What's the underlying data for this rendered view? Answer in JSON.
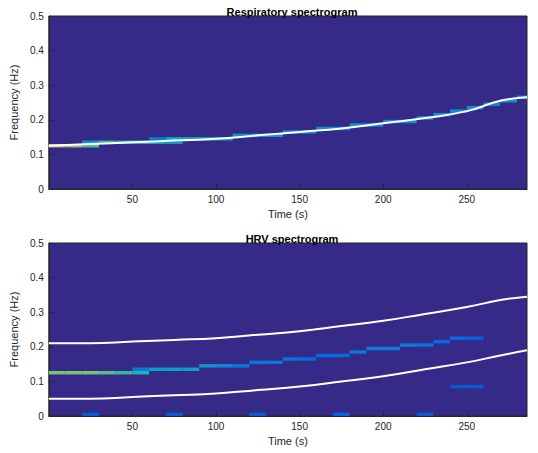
{
  "chart_data": [
    {
      "type": "heatmap",
      "title": "Respiratory spectrogram",
      "x_label": "Time (s)",
      "y_label": "Frequency (Hz)",
      "xlim": [
        0,
        286
      ],
      "xticks": [
        50,
        100,
        150,
        200,
        250
      ],
      "ylim": [
        0,
        0.5
      ],
      "yticks": [
        0,
        0.1,
        0.2,
        0.3,
        0.4,
        0.5
      ],
      "clim": [
        0,
        1
      ],
      "cell_size": [
        10,
        0.01
      ],
      "cells": [
        [
          5,
          0.125,
          0.7
        ],
        [
          15,
          0.125,
          0.65
        ],
        [
          25,
          0.125,
          0.55
        ],
        [
          25,
          0.135,
          0.3
        ],
        [
          35,
          0.135,
          0.5
        ],
        [
          45,
          0.135,
          0.45
        ],
        [
          55,
          0.135,
          0.45
        ],
        [
          65,
          0.135,
          0.4
        ],
        [
          65,
          0.145,
          0.2
        ],
        [
          75,
          0.135,
          0.3
        ],
        [
          75,
          0.145,
          0.4
        ],
        [
          85,
          0.145,
          0.4
        ],
        [
          95,
          0.145,
          0.4
        ],
        [
          105,
          0.145,
          0.35
        ],
        [
          115,
          0.155,
          0.3
        ],
        [
          125,
          0.155,
          0.3
        ],
        [
          135,
          0.155,
          0.3
        ],
        [
          145,
          0.165,
          0.28
        ],
        [
          155,
          0.165,
          0.28
        ],
        [
          165,
          0.175,
          0.28
        ],
        [
          175,
          0.175,
          0.28
        ],
        [
          185,
          0.185,
          0.28
        ],
        [
          195,
          0.185,
          0.28
        ],
        [
          205,
          0.195,
          0.28
        ],
        [
          215,
          0.195,
          0.28
        ],
        [
          225,
          0.205,
          0.28
        ],
        [
          235,
          0.215,
          0.28
        ],
        [
          245,
          0.225,
          0.28
        ],
        [
          255,
          0.235,
          0.28
        ],
        [
          265,
          0.245,
          0.28
        ],
        [
          275,
          0.255,
          0.28
        ],
        [
          285,
          0.265,
          0.28
        ]
      ],
      "series": [
        {
          "type": "line",
          "color": "#ffffff",
          "x": [
            0,
            25,
            50,
            75,
            100,
            125,
            150,
            175,
            200,
            225,
            250,
            270,
            286
          ],
          "values": [
            0.125,
            0.13,
            0.135,
            0.14,
            0.145,
            0.155,
            0.165,
            0.175,
            0.19,
            0.205,
            0.225,
            0.255,
            0.265
          ]
        }
      ]
    },
    {
      "type": "heatmap",
      "title": "HRV spectrogram",
      "x_label": "Time (s)",
      "y_label": "Frequency (Hz)",
      "xlim": [
        0,
        286
      ],
      "xticks": [
        50,
        100,
        150,
        200,
        250
      ],
      "ylim": [
        0,
        0.5
      ],
      "yticks": [
        0,
        0.1,
        0.2,
        0.3,
        0.4,
        0.5
      ],
      "clim": [
        0,
        1
      ],
      "cell_size": [
        10,
        0.01
      ],
      "cells": [
        [
          5,
          0.125,
          0.6
        ],
        [
          15,
          0.125,
          0.6
        ],
        [
          25,
          0.125,
          0.6
        ],
        [
          35,
          0.125,
          0.55
        ],
        [
          45,
          0.125,
          0.5
        ],
        [
          55,
          0.125,
          0.45
        ],
        [
          55,
          0.135,
          0.2
        ],
        [
          65,
          0.135,
          0.35
        ],
        [
          75,
          0.135,
          0.35
        ],
        [
          85,
          0.135,
          0.35
        ],
        [
          95,
          0.145,
          0.3
        ],
        [
          105,
          0.145,
          0.25
        ],
        [
          115,
          0.145,
          0.2
        ],
        [
          125,
          0.155,
          0.2
        ],
        [
          135,
          0.155,
          0.2
        ],
        [
          145,
          0.165,
          0.18
        ],
        [
          155,
          0.165,
          0.15
        ],
        [
          165,
          0.175,
          0.15
        ],
        [
          175,
          0.175,
          0.15
        ],
        [
          185,
          0.185,
          0.2
        ],
        [
          195,
          0.195,
          0.22
        ],
        [
          205,
          0.195,
          0.22
        ],
        [
          215,
          0.205,
          0.2
        ],
        [
          225,
          0.205,
          0.18
        ],
        [
          235,
          0.215,
          0.15
        ],
        [
          245,
          0.225,
          0.15
        ],
        [
          255,
          0.225,
          0.12
        ],
        [
          245,
          0.085,
          0.1
        ],
        [
          255,
          0.085,
          0.1
        ],
        [
          25,
          0.005,
          0.1
        ],
        [
          75,
          0.005,
          0.1
        ],
        [
          125,
          0.005,
          0.1
        ],
        [
          175,
          0.005,
          0.12
        ],
        [
          225,
          0.005,
          0.1
        ]
      ],
      "series": [
        {
          "type": "line",
          "color": "#ffffff",
          "x": [
            0,
            25,
            50,
            75,
            100,
            125,
            150,
            175,
            200,
            225,
            250,
            270,
            286
          ],
          "values": [
            0.21,
            0.21,
            0.215,
            0.22,
            0.225,
            0.235,
            0.245,
            0.26,
            0.275,
            0.295,
            0.315,
            0.335,
            0.345
          ]
        },
        {
          "type": "line",
          "color": "#ffffff",
          "x": [
            0,
            25,
            50,
            75,
            100,
            125,
            150,
            175,
            200,
            225,
            250,
            270,
            286
          ],
          "values": [
            0.05,
            0.05,
            0.055,
            0.06,
            0.065,
            0.075,
            0.085,
            0.1,
            0.115,
            0.135,
            0.155,
            0.175,
            0.19
          ]
        }
      ]
    }
  ]
}
